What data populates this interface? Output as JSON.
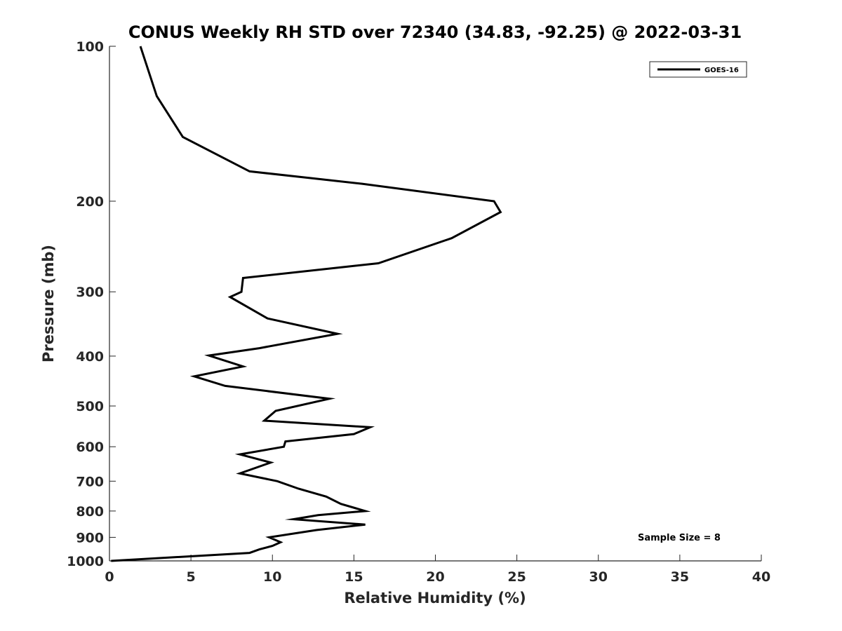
{
  "chart_data": {
    "type": "line",
    "title": "CONUS Weekly RH STD over 72340 (34.83, -92.25) @ 2022-03-31",
    "xlabel": "Relative Humidity (%)",
    "ylabel": "Pressure (mb)",
    "xlim": [
      0,
      40
    ],
    "ylim": [
      100,
      1000
    ],
    "y_scale": "log",
    "y_reversed": true,
    "grid": false,
    "legend_position": "top-right",
    "x_ticks": [
      "0",
      "5",
      "10",
      "15",
      "20",
      "25",
      "30",
      "35",
      "40"
    ],
    "y_ticks": [
      "100",
      "200",
      "300",
      "400",
      "500",
      "600",
      "700",
      "800",
      "900",
      "1000"
    ],
    "series": [
      {
        "name": "GOES-16",
        "color": "#000000",
        "points": [
          [
            1.9,
            100
          ],
          [
            2.9,
            125
          ],
          [
            4.5,
            150
          ],
          [
            8.6,
            175
          ],
          [
            15.5,
            185
          ],
          [
            23.6,
            200
          ],
          [
            24.0,
            210
          ],
          [
            21.0,
            236
          ],
          [
            16.5,
            264
          ],
          [
            8.2,
            282
          ],
          [
            8.1,
            300
          ],
          [
            7.4,
            307
          ],
          [
            9.7,
            338
          ],
          [
            14.0,
            362
          ],
          [
            9.2,
            386
          ],
          [
            6.1,
            399
          ],
          [
            8.2,
            419
          ],
          [
            5.2,
            438
          ],
          [
            7.1,
            457
          ],
          [
            13.5,
            484
          ],
          [
            10.2,
            511
          ],
          [
            9.5,
            534
          ],
          [
            16.0,
            550
          ],
          [
            15.0,
            567
          ],
          [
            10.8,
            586
          ],
          [
            10.7,
            600
          ],
          [
            8.0,
            621
          ],
          [
            9.9,
            644
          ],
          [
            8.0,
            676
          ],
          [
            10.3,
            700
          ],
          [
            11.6,
            724
          ],
          [
            13.3,
            750
          ],
          [
            14.2,
            775
          ],
          [
            15.7,
            800
          ],
          [
            12.8,
            815
          ],
          [
            11.3,
            830
          ],
          [
            15.7,
            850
          ],
          [
            12.7,
            871
          ],
          [
            9.8,
            900
          ],
          [
            10.5,
            920
          ],
          [
            10.0,
            935
          ],
          [
            9.2,
            950
          ],
          [
            8.6,
            965
          ],
          [
            0.1,
            1000
          ]
        ]
      }
    ],
    "annotations": [
      "Sample Size = 8"
    ]
  }
}
